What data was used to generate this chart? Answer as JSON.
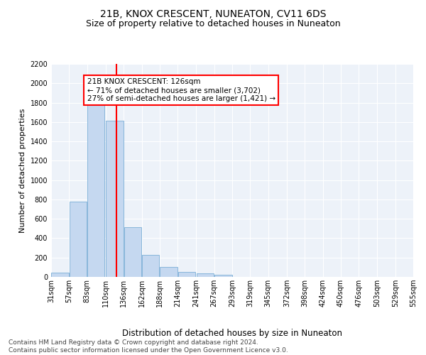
{
  "title1": "21B, KNOX CRESCENT, NUNEATON, CV11 6DS",
  "title2": "Size of property relative to detached houses in Nuneaton",
  "xlabel": "Distribution of detached houses by size in Nuneaton",
  "ylabel": "Number of detached properties",
  "bins": [
    31,
    57,
    83,
    110,
    136,
    162,
    188,
    214,
    241,
    267,
    293,
    319,
    345,
    372,
    398,
    424,
    450,
    476,
    503,
    529,
    555
  ],
  "counts": [
    45,
    775,
    1820,
    1610,
    510,
    230,
    103,
    55,
    35,
    20,
    0,
    0,
    0,
    0,
    0,
    0,
    0,
    0,
    0,
    0
  ],
  "bar_color": "#c5d8f0",
  "bar_edge_color": "#7aaed6",
  "vline_x": 126,
  "vline_color": "red",
  "annotation_text": "21B KNOX CRESCENT: 126sqm\n← 71% of detached houses are smaller (3,702)\n27% of semi-detached houses are larger (1,421) →",
  "annotation_box_color": "white",
  "annotation_box_edge": "red",
  "ylim": [
    0,
    2200
  ],
  "yticks": [
    0,
    200,
    400,
    600,
    800,
    1000,
    1200,
    1400,
    1600,
    1800,
    2000,
    2200
  ],
  "footer_text": "Contains HM Land Registry data © Crown copyright and database right 2024.\nContains public sector information licensed under the Open Government Licence v3.0.",
  "bg_color": "#edf2f9",
  "grid_color": "#ffffff",
  "title_fontsize": 10,
  "subtitle_fontsize": 9,
  "tick_label_fontsize": 7,
  "ylabel_fontsize": 8,
  "xlabel_fontsize": 8.5,
  "footer_fontsize": 6.5,
  "annotation_fontsize": 7.5
}
